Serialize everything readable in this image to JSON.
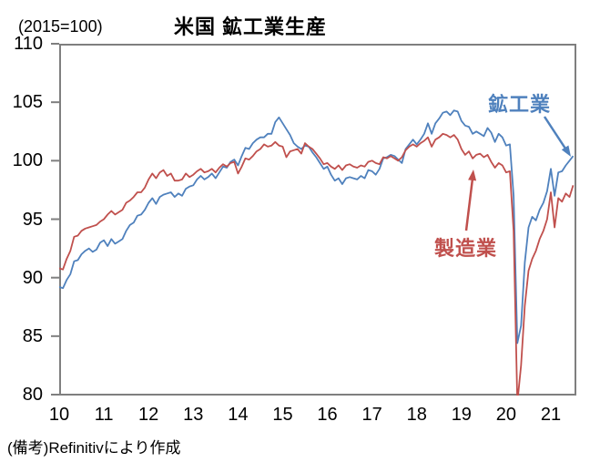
{
  "title": "米国 鉱工業生産",
  "unit_note": "(2015=100)",
  "footnote": "(備考)Refinitivにより作成",
  "series_labels": {
    "industry": "鉱工業",
    "manufacturing": "製造業"
  },
  "colors": {
    "industry_line": "#4F81BD",
    "manufacturing_line": "#C0504D",
    "axis": "#7F7F7F",
    "text": "#000000"
  },
  "chart_data": {
    "type": "line",
    "title": "米国 鉱工業生産",
    "unit": "(2015=100)",
    "frequency": "monthly",
    "x_start": "2010-01",
    "x_end": "2021-07",
    "x_tick_labels": [
      "10",
      "11",
      "12",
      "13",
      "14",
      "15",
      "16",
      "17",
      "18",
      "19",
      "20",
      "21"
    ],
    "ylim": [
      80,
      110
    ],
    "y_ticks": [
      80,
      85,
      90,
      95,
      100,
      105,
      110
    ],
    "grid": false,
    "legend_position": "inline-annotations",
    "annotations": [
      {
        "text": "鉱工業",
        "color": "#4F81BD",
        "points_to": "end of industry line (~100.4, 2021-07)"
      },
      {
        "text": "製造業",
        "color": "#C0504D",
        "points_to": "manufacturing line (~99.8, 2019-04)"
      }
    ],
    "source_note": "(備考)Refinitivにより作成",
    "series": [
      {
        "name": "鉱工業",
        "color": "#4F81BD",
        "values": [
          89.2,
          89.1,
          89.8,
          90.3,
          91.4,
          91.5,
          92.0,
          92.3,
          92.5,
          92.2,
          92.4,
          93.0,
          93.2,
          92.7,
          93.3,
          92.9,
          93.1,
          93.3,
          94.0,
          94.5,
          94.7,
          95.3,
          95.4,
          95.8,
          96.4,
          96.8,
          96.3,
          96.9,
          97.1,
          97.2,
          97.3,
          96.9,
          97.2,
          97.0,
          97.6,
          97.8,
          97.9,
          98.4,
          98.7,
          98.4,
          98.6,
          98.9,
          98.5,
          99.0,
          99.5,
          99.4,
          99.9,
          100.1,
          99.6,
          100.4,
          101.1,
          101.0,
          101.5,
          101.8,
          102.0,
          102.0,
          102.3,
          102.3,
          103.3,
          103.7,
          103.2,
          102.7,
          102.2,
          101.5,
          101.2,
          101.0,
          101.3,
          101.2,
          100.7,
          100.3,
          99.8,
          99.3,
          99.5,
          98.8,
          98.3,
          98.5,
          98.0,
          98.5,
          98.6,
          98.5,
          98.4,
          98.7,
          98.5,
          99.2,
          99.1,
          98.8,
          99.3,
          100.2,
          100.3,
          100.5,
          100.4,
          100.1,
          99.8,
          101.0,
          101.4,
          101.8,
          101.4,
          101.8,
          102.3,
          103.2,
          102.3,
          103.2,
          103.6,
          104.1,
          104.2,
          103.9,
          104.3,
          104.2,
          103.4,
          103.0,
          102.9,
          102.3,
          102.5,
          102.3,
          102.1,
          102.8,
          102.4,
          101.6,
          102.3,
          102.0,
          101.3,
          101.4,
          97.0,
          84.4,
          85.9,
          91.3,
          94.3,
          95.2,
          94.9,
          95.8,
          96.4,
          97.4,
          99.3,
          97.0,
          99.0,
          99.1,
          99.6,
          100.0,
          100.4
        ]
      },
      {
        "name": "製造業",
        "color": "#C0504D",
        "values": [
          90.8,
          90.7,
          91.6,
          92.3,
          93.5,
          93.6,
          94.0,
          94.2,
          94.3,
          94.4,
          94.5,
          94.8,
          95.0,
          95.4,
          95.7,
          95.4,
          95.6,
          95.8,
          96.4,
          96.6,
          96.9,
          97.3,
          97.3,
          97.7,
          98.4,
          98.9,
          98.5,
          99.0,
          99.2,
          98.7,
          98.9,
          98.3,
          98.3,
          98.4,
          98.9,
          98.6,
          98.8,
          99.1,
          99.3,
          99.0,
          99.1,
          99.3,
          99.0,
          99.4,
          99.7,
          99.5,
          99.8,
          99.9,
          98.9,
          99.5,
          100.2,
          100.1,
          100.4,
          100.8,
          101.0,
          101.4,
          101.2,
          101.3,
          101.6,
          101.3,
          101.2,
          100.3,
          100.8,
          100.9,
          101.0,
          100.6,
          101.5,
          101.2,
          101.0,
          100.6,
          100.2,
          99.7,
          99.8,
          99.5,
          99.3,
          99.6,
          99.2,
          99.6,
          99.7,
          99.5,
          99.4,
          99.6,
          99.5,
          99.9,
          100.0,
          99.8,
          99.7,
          100.3,
          100.2,
          100.4,
          100.2,
          100.0,
          100.3,
          100.9,
          101.2,
          101.4,
          101.2,
          101.5,
          101.7,
          102.0,
          101.2,
          101.8,
          102.0,
          102.3,
          102.2,
          102.0,
          102.2,
          101.8,
          101.0,
          100.5,
          100.8,
          100.2,
          100.5,
          100.6,
          100.3,
          100.5,
          99.9,
          99.4,
          99.8,
          99.6,
          99.0,
          99.1,
          94.0,
          79.3,
          82.5,
          87.6,
          90.6,
          91.6,
          92.3,
          93.3,
          94.0,
          95.0,
          97.3,
          94.3,
          96.8,
          96.5,
          97.2,
          96.9,
          97.9
        ]
      }
    ]
  }
}
